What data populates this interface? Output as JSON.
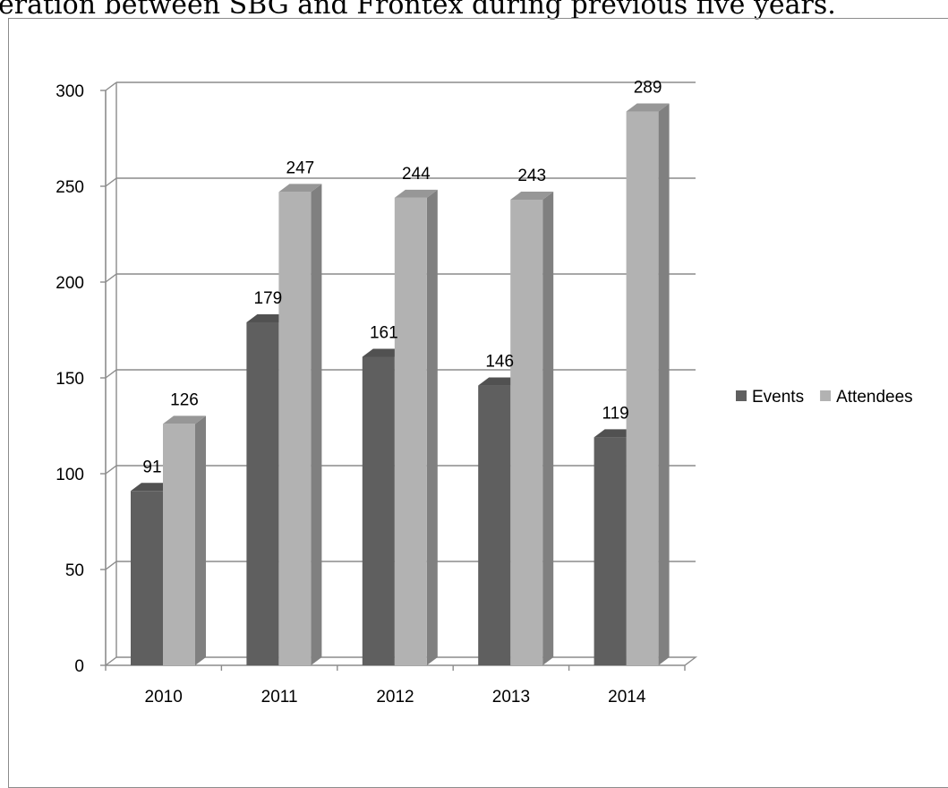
{
  "caption": "eration between SBG and Frontex during previous five years.",
  "chart_data": {
    "type": "bar",
    "style": "3d-clustered-column",
    "categories": [
      "2010",
      "2011",
      "2012",
      "2013",
      "2014"
    ],
    "series": [
      {
        "name": "Events",
        "values": [
          91,
          179,
          161,
          146,
          119
        ],
        "color": "#5f5f5f"
      },
      {
        "name": "Attendees",
        "values": [
          126,
          247,
          244,
          243,
          289
        ],
        "color": "#b2b2b2"
      }
    ],
    "y_ticks": [
      "0",
      "50",
      "100",
      "150",
      "200",
      "250",
      "300"
    ],
    "ylim": [
      0,
      300
    ],
    "grid": true,
    "data_labels": true,
    "legend": "right"
  }
}
